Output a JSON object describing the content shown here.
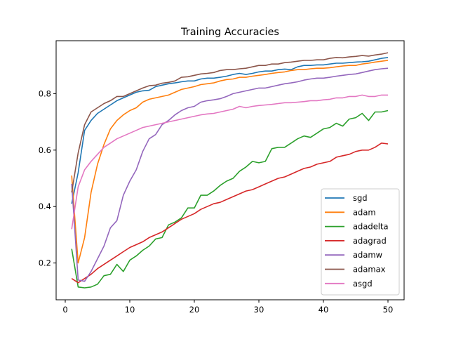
{
  "chart_data": {
    "type": "line",
    "title": "Training Accuracies",
    "xlabel": "",
    "ylabel": "",
    "xlim": [
      -1.5,
      52.5
    ],
    "ylim": [
      0.075,
      0.975
    ],
    "xticks": [
      0,
      10,
      20,
      30,
      40,
      50
    ],
    "yticks": [
      0.2,
      0.4,
      0.6,
      0.8
    ],
    "ytick_labels": [
      "0.2",
      "0.4",
      "0.6",
      "0.8"
    ],
    "grid": false,
    "legend_position": "lower right",
    "x": [
      1,
      2,
      3,
      4,
      5,
      6,
      7,
      8,
      9,
      10,
      11,
      12,
      13,
      14,
      15,
      16,
      17,
      18,
      19,
      20,
      21,
      22,
      23,
      24,
      25,
      26,
      27,
      28,
      29,
      30,
      31,
      32,
      33,
      34,
      35,
      36,
      37,
      38,
      39,
      40,
      41,
      42,
      43,
      44,
      45,
      46,
      47,
      48,
      49,
      50
    ],
    "series": [
      {
        "name": "sgd",
        "color": "#1f77b4",
        "values": [
          0.41,
          0.52,
          0.67,
          0.705,
          0.73,
          0.745,
          0.76,
          0.775,
          0.785,
          0.795,
          0.805,
          0.81,
          0.812,
          0.825,
          0.83,
          0.835,
          0.838,
          0.842,
          0.845,
          0.845,
          0.852,
          0.855,
          0.855,
          0.858,
          0.862,
          0.868,
          0.872,
          0.868,
          0.872,
          0.877,
          0.88,
          0.88,
          0.885,
          0.887,
          0.885,
          0.895,
          0.9,
          0.9,
          0.902,
          0.902,
          0.905,
          0.908,
          0.908,
          0.91,
          0.912,
          0.913,
          0.915,
          0.92,
          0.925,
          0.928
        ]
      },
      {
        "name": "adam",
        "color": "#ff7f0e",
        "values": [
          0.51,
          0.2,
          0.29,
          0.45,
          0.55,
          0.62,
          0.675,
          0.705,
          0.725,
          0.74,
          0.75,
          0.77,
          0.78,
          0.785,
          0.79,
          0.795,
          0.805,
          0.815,
          0.82,
          0.825,
          0.832,
          0.835,
          0.838,
          0.845,
          0.85,
          0.852,
          0.858,
          0.858,
          0.862,
          0.865,
          0.868,
          0.872,
          0.875,
          0.877,
          0.882,
          0.885,
          0.885,
          0.888,
          0.89,
          0.89,
          0.892,
          0.895,
          0.898,
          0.9,
          0.9,
          0.905,
          0.908,
          0.912,
          0.915,
          0.918
        ]
      },
      {
        "name": "adadelta",
        "color": "#2ca02c",
        "values": [
          0.25,
          0.115,
          0.112,
          0.115,
          0.125,
          0.155,
          0.16,
          0.195,
          0.17,
          0.21,
          0.225,
          0.245,
          0.26,
          0.285,
          0.29,
          0.335,
          0.345,
          0.36,
          0.395,
          0.395,
          0.44,
          0.44,
          0.455,
          0.475,
          0.49,
          0.5,
          0.525,
          0.54,
          0.56,
          0.555,
          0.56,
          0.605,
          0.61,
          0.61,
          0.625,
          0.64,
          0.65,
          0.645,
          0.66,
          0.675,
          0.68,
          0.695,
          0.685,
          0.71,
          0.715,
          0.73,
          0.705,
          0.735,
          0.735,
          0.74
        ]
      },
      {
        "name": "adagrad",
        "color": "#d62728",
        "values": [
          0.145,
          0.13,
          0.145,
          0.16,
          0.18,
          0.195,
          0.21,
          0.225,
          0.24,
          0.255,
          0.265,
          0.275,
          0.29,
          0.3,
          0.31,
          0.325,
          0.34,
          0.355,
          0.365,
          0.375,
          0.39,
          0.4,
          0.41,
          0.415,
          0.425,
          0.435,
          0.445,
          0.455,
          0.46,
          0.47,
          0.48,
          0.49,
          0.5,
          0.505,
          0.515,
          0.525,
          0.535,
          0.54,
          0.55,
          0.555,
          0.56,
          0.575,
          0.58,
          0.585,
          0.595,
          0.6,
          0.6,
          0.61,
          0.625,
          0.622
        ]
      },
      {
        "name": "adamw",
        "color": "#9467bd",
        "values": [
          0.48,
          0.14,
          0.135,
          0.17,
          0.215,
          0.26,
          0.325,
          0.35,
          0.44,
          0.49,
          0.53,
          0.595,
          0.64,
          0.655,
          0.69,
          0.705,
          0.725,
          0.74,
          0.75,
          0.755,
          0.77,
          0.775,
          0.778,
          0.782,
          0.79,
          0.8,
          0.805,
          0.81,
          0.815,
          0.82,
          0.82,
          0.825,
          0.83,
          0.835,
          0.838,
          0.842,
          0.848,
          0.852,
          0.855,
          0.855,
          0.858,
          0.862,
          0.865,
          0.868,
          0.87,
          0.875,
          0.88,
          0.885,
          0.888,
          0.89
        ]
      },
      {
        "name": "adamax",
        "color": "#8c564b",
        "values": [
          0.45,
          0.59,
          0.69,
          0.735,
          0.75,
          0.765,
          0.775,
          0.79,
          0.79,
          0.8,
          0.81,
          0.82,
          0.828,
          0.83,
          0.837,
          0.84,
          0.845,
          0.858,
          0.86,
          0.865,
          0.87,
          0.872,
          0.875,
          0.882,
          0.885,
          0.885,
          0.888,
          0.89,
          0.895,
          0.9,
          0.9,
          0.905,
          0.905,
          0.91,
          0.912,
          0.915,
          0.918,
          0.918,
          0.92,
          0.92,
          0.925,
          0.928,
          0.927,
          0.93,
          0.932,
          0.935,
          0.933,
          0.937,
          0.94,
          0.945
        ]
      },
      {
        "name": "asgd",
        "color": "#e377c2",
        "values": [
          0.32,
          0.47,
          0.53,
          0.56,
          0.585,
          0.61,
          0.625,
          0.64,
          0.65,
          0.66,
          0.67,
          0.68,
          0.685,
          0.69,
          0.695,
          0.7,
          0.705,
          0.71,
          0.715,
          0.72,
          0.725,
          0.728,
          0.73,
          0.735,
          0.74,
          0.745,
          0.755,
          0.75,
          0.755,
          0.758,
          0.76,
          0.762,
          0.765,
          0.768,
          0.768,
          0.77,
          0.772,
          0.775,
          0.775,
          0.778,
          0.78,
          0.785,
          0.785,
          0.79,
          0.79,
          0.795,
          0.79,
          0.79,
          0.795,
          0.795
        ]
      }
    ]
  },
  "figure": {
    "title": "Training Accuracies",
    "xtick_labels": [
      "0",
      "10",
      "20",
      "30",
      "40",
      "50"
    ],
    "ytick_labels": [
      "0.2",
      "0.4",
      "0.6",
      "0.8"
    ],
    "legend": [
      "sgd",
      "adam",
      "adadelta",
      "adagrad",
      "adamw",
      "adamax",
      "asgd"
    ]
  }
}
